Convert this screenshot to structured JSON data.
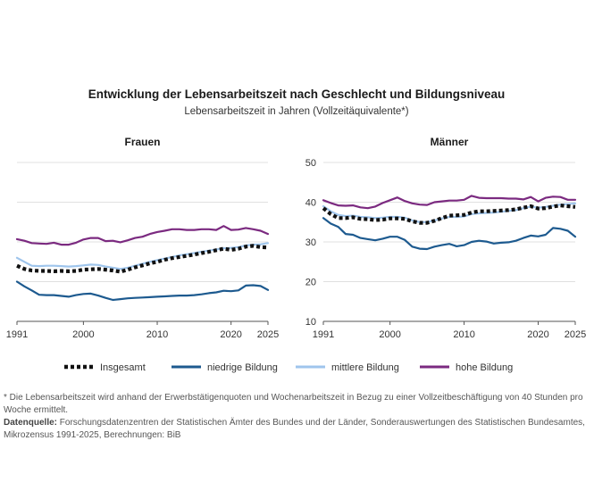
{
  "chart_data": {
    "type": "line",
    "title": "Entwicklung der Lebensarbeitszeit nach Geschlecht und Bildungsniveau",
    "subtitle": "Lebensarbeitszeit in Jahren (Vollzeitäquivalente*)",
    "x_ticks": [
      "1991",
      "2000",
      "2010",
      "2020",
      "2025"
    ],
    "xlim": [
      1991,
      2025
    ],
    "ylim": [
      10,
      50
    ],
    "y_ticks": [
      "10",
      "20",
      "30",
      "40",
      "50"
    ],
    "grid": true,
    "legend": "bottom",
    "colors": {
      "Insgesamt": "#111111",
      "niedrige Bildung": "#1d5a8f",
      "mittlere Bildung": "#9fc5ec",
      "hohe Bildung": "#7b2a80"
    },
    "x": [
      1991,
      1992,
      1993,
      1994,
      1995,
      1996,
      1997,
      1998,
      1999,
      2000,
      2001,
      2002,
      2003,
      2004,
      2005,
      2006,
      2007,
      2008,
      2009,
      2010,
      2011,
      2012,
      2013,
      2014,
      2015,
      2016,
      2017,
      2018,
      2019,
      2020,
      2021,
      2022,
      2023,
      2024,
      2025
    ],
    "panels": [
      {
        "title": "Frauen",
        "series": [
          {
            "name": "Insgesamt",
            "values": [
              24.0,
              23.2,
              22.8,
              22.7,
              22.7,
              22.6,
              22.7,
              22.6,
              22.7,
              23.0,
              23.1,
              23.2,
              23.0,
              22.8,
              22.5,
              23.0,
              23.6,
              24.1,
              24.6,
              25.0,
              25.5,
              25.9,
              26.2,
              26.5,
              26.8,
              27.2,
              27.5,
              27.9,
              28.3,
              28.0,
              28.3,
              28.8,
              29.0,
              28.7,
              28.6
            ]
          },
          {
            "name": "niedrige Bildung",
            "values": [
              20.0,
              18.8,
              17.8,
              16.7,
              16.6,
              16.6,
              16.4,
              16.2,
              16.6,
              16.9,
              17.0,
              16.5,
              15.9,
              15.4,
              15.6,
              15.8,
              15.9,
              16.0,
              16.1,
              16.2,
              16.3,
              16.4,
              16.5,
              16.5,
              16.6,
              16.8,
              17.1,
              17.3,
              17.7,
              17.6,
              17.8,
              19.0,
              19.1,
              18.9,
              17.9
            ]
          },
          {
            "name": "mittlere Bildung",
            "values": [
              26.0,
              25.0,
              24.0,
              23.9,
              24.0,
              24.0,
              23.9,
              23.8,
              23.9,
              24.1,
              24.3,
              24.2,
              23.8,
              23.5,
              23.2,
              23.5,
              24.0,
              24.5,
              25.0,
              25.4,
              25.8,
              26.2,
              26.6,
              26.9,
              27.2,
              27.5,
              27.8,
              28.1,
              28.4,
              28.5,
              28.7,
              29.1,
              29.3,
              29.4,
              29.7
            ]
          },
          {
            "name": "hohe Bildung",
            "values": [
              30.7,
              30.3,
              29.7,
              29.6,
              29.5,
              29.8,
              29.3,
              29.3,
              29.8,
              30.6,
              31.0,
              31.0,
              30.2,
              30.3,
              29.9,
              30.4,
              31.0,
              31.3,
              32.0,
              32.5,
              32.8,
              33.2,
              33.2,
              33.0,
              33.0,
              33.2,
              33.2,
              33.0,
              34.0,
              33.0,
              33.1,
              33.5,
              33.2,
              32.8,
              32.0
            ]
          }
        ]
      },
      {
        "title": "Männer",
        "series": [
          {
            "name": "Insgesamt",
            "values": [
              38.5,
              37.0,
              36.0,
              36.0,
              36.2,
              35.8,
              35.7,
              35.5,
              35.6,
              35.9,
              35.9,
              35.8,
              35.2,
              34.8,
              34.8,
              35.3,
              36.0,
              36.6,
              36.7,
              36.8,
              37.4,
              37.7,
              37.7,
              37.8,
              37.9,
              38.0,
              38.2,
              38.6,
              39.0,
              38.4,
              38.5,
              38.9,
              39.2,
              39.0,
              38.8
            ]
          },
          {
            "name": "niedrige Bildung",
            "values": [
              36.0,
              34.6,
              33.8,
              32.0,
              31.8,
              31.0,
              30.7,
              30.4,
              30.8,
              31.3,
              31.3,
              30.5,
              28.8,
              28.3,
              28.2,
              28.8,
              29.2,
              29.5,
              28.9,
              29.2,
              30.0,
              30.3,
              30.1,
              29.6,
              29.8,
              29.9,
              30.3,
              31.0,
              31.6,
              31.4,
              31.8,
              33.5,
              33.3,
              32.8,
              31.3
            ]
          },
          {
            "name": "mittlere Bildung",
            "values": [
              39.0,
              37.7,
              36.8,
              36.5,
              36.6,
              36.3,
              36.2,
              36.0,
              36.1,
              36.3,
              36.3,
              36.1,
              35.4,
              35.0,
              35.0,
              35.4,
              35.9,
              36.3,
              36.3,
              36.4,
              37.0,
              37.2,
              37.3,
              37.4,
              37.6,
              37.8,
              38.0,
              38.5,
              38.9,
              38.6,
              38.8,
              39.1,
              39.4,
              39.5,
              39.7
            ]
          },
          {
            "name": "hohe Bildung",
            "values": [
              40.5,
              39.8,
              39.2,
              39.1,
              39.2,
              38.7,
              38.5,
              38.9,
              39.8,
              40.5,
              41.2,
              40.3,
              39.7,
              39.4,
              39.3,
              40.0,
              40.2,
              40.4,
              40.4,
              40.6,
              41.6,
              41.1,
              41.0,
              41.0,
              41.0,
              40.9,
              40.9,
              40.7,
              41.3,
              40.2,
              41.1,
              41.4,
              41.3,
              40.6,
              40.6
            ]
          }
        ]
      }
    ]
  },
  "footnote": "* Die Lebensarbeitszeit wird anhand der Erwerbstätigenquoten und Wochenarbeitszeit in Bezug zu einer Vollzeitbeschäftigung von 40 Stunden pro Woche ermittelt.",
  "source": {
    "label": "Datenquelle:",
    "text": "Forschungsdatenzentren der Statistischen Ämter des Bundes und der Länder, Sonderauswertungen des Statistischen Bundesamtes, Mikrozensus 1991-2025, Berechnungen: BiB"
  }
}
